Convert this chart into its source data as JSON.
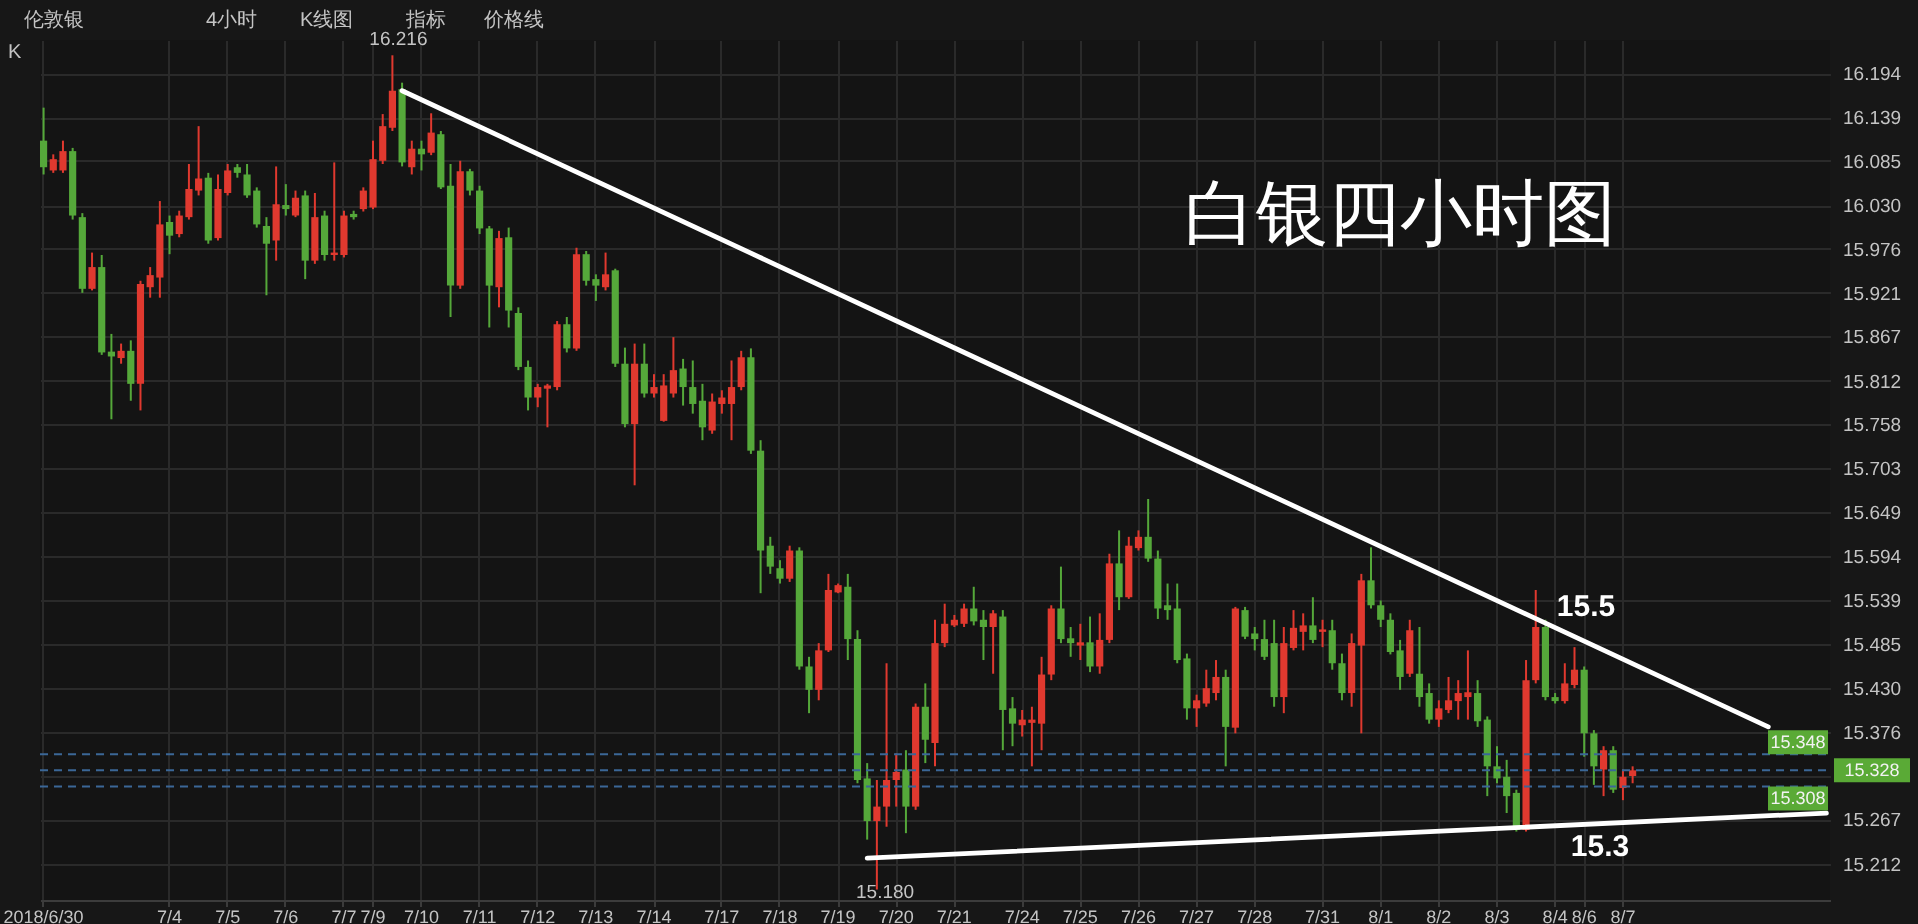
{
  "chart_data": {
    "type": "candlestick",
    "title": "白银四小时图",
    "grid": true,
    "ylim": [
      15.167,
      16.235
    ],
    "yticks": [
      16.194,
      16.139,
      16.085,
      {
        "value": 16.03,
        "label": "16.030"
      },
      15.976,
      15.921,
      15.867,
      15.812,
      15.758,
      15.703,
      15.649,
      15.594,
      15.539,
      15.485,
      {
        "value": 15.43,
        "label": "15.430"
      },
      15.376,
      {
        "value": 15.321,
        "label": null
      },
      15.267,
      15.212
    ],
    "categories": [
      "2018/6/30",
      null,
      null,
      null,
      null,
      null,
      null,
      null,
      null,
      null,
      null,
      null,
      null,
      "7/4",
      null,
      null,
      null,
      null,
      null,
      "7/5",
      null,
      null,
      null,
      null,
      null,
      "7/6",
      null,
      null,
      null,
      null,
      null,
      "7/7",
      null,
      null,
      "7/9",
      null,
      null,
      null,
      null,
      "7/10",
      null,
      null,
      null,
      null,
      null,
      "7/11",
      null,
      null,
      null,
      null,
      null,
      "7/12",
      null,
      null,
      null,
      null,
      null,
      "7/13",
      null,
      null,
      null,
      null,
      null,
      "7/14",
      null,
      null,
      null,
      null,
      null,
      null,
      "7/17",
      null,
      null,
      null,
      null,
      null,
      "7/18",
      null,
      null,
      null,
      null,
      null,
      "7/19",
      null,
      null,
      null,
      null,
      null,
      "7/20",
      null,
      null,
      null,
      null,
      null,
      "7/21",
      null,
      null,
      null,
      null,
      null,
      null,
      "7/24",
      null,
      null,
      null,
      null,
      null,
      "7/25",
      null,
      null,
      null,
      null,
      null,
      "7/26",
      null,
      null,
      null,
      null,
      null,
      "7/27",
      null,
      null,
      null,
      null,
      null,
      "7/28",
      null,
      null,
      null,
      null,
      null,
      null,
      "7/31",
      null,
      null,
      null,
      null,
      null,
      "8/1",
      null,
      null,
      null,
      null,
      null,
      "8/2",
      null,
      null,
      null,
      null,
      null,
      "8/3",
      null,
      null,
      null,
      null,
      null,
      "8/4",
      null,
      null,
      "8/6",
      null,
      null,
      null,
      "8/7",
      null,
      null,
      null,
      null,
      null,
      null,
      null,
      null,
      null,
      null,
      null,
      null,
      null,
      null,
      null,
      null,
      null,
      null,
      null,
      null,
      null
    ],
    "ohlc": [
      [
        16.11,
        16.151,
        16.068,
        16.077
      ],
      [
        16.073,
        16.093,
        16.07,
        16.087
      ],
      [
        16.073,
        16.11,
        16.07,
        16.097
      ],
      [
        16.097,
        16.101,
        16.012,
        16.017
      ],
      [
        16.015,
        16.02,
        15.921,
        15.926
      ],
      [
        15.926,
        15.971,
        15.924,
        15.953
      ],
      [
        15.953,
        15.968,
        15.844,
        15.847
      ],
      [
        15.848,
        15.87,
        15.764,
        15.842
      ],
      [
        15.84,
        15.858,
        15.833,
        15.849
      ],
      [
        15.849,
        15.862,
        15.787,
        15.808
      ],
      [
        15.808,
        15.936,
        15.775,
        15.932
      ],
      [
        15.928,
        15.953,
        15.915,
        15.943
      ],
      [
        15.94,
        16.035,
        15.915,
        16.006
      ],
      [
        16.009,
        16.017,
        15.969,
        15.992
      ],
      [
        15.994,
        16.023,
        15.99,
        16.017
      ],
      [
        16.015,
        16.081,
        16.012,
        16.05
      ],
      [
        16.048,
        16.128,
        16.042,
        16.063
      ],
      [
        16.064,
        16.07,
        15.982,
        15.986
      ],
      [
        15.989,
        16.068,
        15.986,
        16.05
      ],
      [
        16.045,
        16.081,
        16.042,
        16.073
      ],
      [
        16.077,
        16.081,
        16.064,
        16.07
      ],
      [
        16.068,
        16.081,
        16.039,
        16.042
      ],
      [
        16.048,
        16.052,
        16.002,
        16.006
      ],
      [
        16.004,
        16.015,
        15.918,
        15.982
      ],
      [
        15.986,
        16.078,
        15.961,
        16.031
      ],
      [
        16.03,
        16.056,
        16.017,
        16.025
      ],
      [
        16.017,
        16.048,
        16.015,
        16.039
      ],
      [
        16.042,
        16.048,
        15.938,
        15.961
      ],
      [
        15.961,
        16.045,
        15.957,
        16.015
      ],
      [
        16.017,
        16.023,
        15.961,
        15.968
      ],
      [
        15.968,
        16.083,
        15.961,
        15.971
      ],
      [
        15.968,
        16.023,
        15.965,
        16.017
      ],
      [
        16.019,
        16.023,
        16.012,
        16.015
      ],
      [
        16.025,
        16.052,
        16.022,
        16.048
      ],
      [
        16.027,
        16.11,
        16.025,
        16.087
      ],
      [
        16.085,
        16.143,
        16.081,
        16.128
      ],
      [
        16.126,
        16.216,
        16.122,
        16.172
      ],
      [
        16.174,
        16.182,
        16.078,
        16.083
      ],
      [
        16.077,
        16.11,
        16.068,
        16.1
      ],
      [
        16.1,
        16.11,
        16.073,
        16.093
      ],
      [
        16.095,
        16.144,
        16.092,
        16.12
      ],
      [
        16.118,
        16.122,
        16.05,
        16.052
      ],
      [
        16.054,
        16.081,
        15.891,
        15.93
      ],
      [
        15.93,
        16.085,
        15.926,
        16.072
      ],
      [
        16.072,
        16.075,
        16.042,
        16.048
      ],
      [
        16.048,
        16.054,
        15.994,
        16.001
      ],
      [
        16.001,
        16.004,
        15.878,
        15.93
      ],
      [
        15.928,
        15.998,
        15.903,
        15.989
      ],
      [
        15.99,
        16.002,
        15.878,
        15.899
      ],
      [
        15.896,
        15.903,
        15.825,
        15.829
      ],
      [
        15.829,
        15.837,
        15.775,
        15.791
      ],
      [
        15.791,
        15.808,
        15.779,
        15.804
      ],
      [
        15.802,
        15.808,
        15.754,
        15.806
      ],
      [
        15.804,
        15.886,
        15.8,
        15.882
      ],
      [
        15.882,
        15.891,
        15.847,
        15.852
      ],
      [
        15.852,
        15.977,
        15.849,
        15.969
      ],
      [
        15.969,
        15.973,
        15.93,
        15.936
      ],
      [
        15.938,
        15.944,
        15.911,
        15.93
      ],
      [
        15.928,
        15.971,
        15.924,
        15.944
      ],
      [
        15.949,
        15.951,
        15.829,
        15.833
      ],
      [
        15.833,
        15.853,
        15.754,
        15.758
      ],
      [
        15.758,
        15.858,
        15.682,
        15.833
      ],
      [
        15.833,
        15.858,
        15.791,
        15.796
      ],
      [
        15.796,
        15.82,
        15.791,
        15.804
      ],
      [
        15.762,
        15.82,
        15.761,
        15.806
      ],
      [
        15.796,
        15.866,
        15.791,
        15.825
      ],
      [
        15.827,
        15.839,
        15.781,
        15.804
      ],
      [
        15.804,
        15.837,
        15.771,
        15.783
      ],
      [
        15.787,
        15.808,
        15.738,
        15.754
      ],
      [
        15.75,
        15.796,
        15.746,
        15.786
      ],
      [
        15.783,
        15.8,
        15.771,
        15.791
      ],
      [
        15.783,
        15.837,
        15.738,
        15.804
      ],
      [
        15.804,
        15.849,
        15.8,
        15.841
      ],
      [
        15.841,
        15.852,
        15.721,
        15.725
      ],
      [
        15.725,
        15.738,
        15.548,
        15.601
      ],
      [
        15.607,
        15.618,
        15.572,
        15.581
      ],
      [
        15.579,
        15.589,
        15.56,
        15.566
      ],
      [
        15.566,
        15.607,
        15.562,
        15.601
      ],
      [
        15.601,
        15.605,
        15.453,
        15.457
      ],
      [
        15.457,
        15.469,
        15.399,
        15.428
      ],
      [
        15.428,
        15.486,
        15.415,
        15.477
      ],
      [
        15.477,
        15.572,
        15.475,
        15.552
      ],
      [
        15.549,
        15.56,
        15.548,
        15.558
      ],
      [
        15.556,
        15.572,
        15.465,
        15.491
      ],
      [
        15.491,
        15.502,
        15.312,
        15.316
      ],
      [
        15.318,
        15.337,
        15.242,
        15.265
      ],
      [
        15.265,
        15.316,
        15.18,
        15.283
      ],
      [
        15.283,
        15.461,
        15.258,
        15.316
      ],
      [
        15.316,
        15.349,
        15.283,
        15.326
      ],
      [
        15.329,
        15.353,
        15.25,
        15.283
      ],
      [
        15.283,
        15.411,
        15.279,
        15.407
      ],
      [
        15.407,
        15.436,
        15.337,
        15.366
      ],
      [
        15.362,
        15.515,
        15.333,
        15.486
      ],
      [
        15.486,
        15.535,
        15.481,
        15.51
      ],
      [
        15.508,
        15.521,
        15.506,
        15.515
      ],
      [
        15.51,
        15.535,
        15.506,
        15.529
      ],
      [
        15.529,
        15.556,
        15.508,
        15.513
      ],
      [
        15.515,
        15.527,
        15.465,
        15.506
      ],
      [
        15.506,
        15.527,
        15.448,
        15.523
      ],
      [
        15.519,
        15.527,
        15.353,
        15.403
      ],
      [
        15.405,
        15.419,
        15.358,
        15.386
      ],
      [
        15.384,
        15.403,
        15.37,
        15.391
      ],
      [
        15.387,
        15.407,
        15.333,
        15.391
      ],
      [
        15.386,
        15.469,
        15.353,
        15.447
      ],
      [
        15.447,
        15.533,
        15.44,
        15.529
      ],
      [
        15.529,
        15.581,
        15.486,
        15.491
      ],
      [
        15.492,
        15.506,
        15.469,
        15.486
      ],
      [
        15.483,
        15.51,
        15.465,
        15.487
      ],
      [
        15.487,
        15.519,
        15.45,
        15.457
      ],
      [
        15.457,
        15.523,
        15.448,
        15.49
      ],
      [
        15.49,
        15.597,
        15.486,
        15.585
      ],
      [
        15.585,
        15.626,
        15.527,
        15.543
      ],
      [
        15.543,
        15.618,
        15.541,
        15.607
      ],
      [
        15.604,
        15.626,
        15.601,
        15.618
      ],
      [
        15.618,
        15.665,
        15.587,
        15.591
      ],
      [
        15.591,
        15.601,
        15.516,
        15.529
      ],
      [
        15.533,
        15.56,
        15.515,
        15.527
      ],
      [
        15.529,
        15.56,
        15.461,
        15.465
      ],
      [
        15.467,
        15.473,
        15.391,
        15.405
      ],
      [
        15.405,
        15.422,
        15.382,
        15.415
      ],
      [
        15.411,
        15.453,
        15.407,
        15.43
      ],
      [
        15.424,
        15.465,
        15.415,
        15.444
      ],
      [
        15.444,
        15.453,
        15.333,
        15.382
      ],
      [
        15.381,
        15.531,
        15.374,
        15.529
      ],
      [
        15.527,
        15.531,
        15.491,
        15.494
      ],
      [
        15.498,
        15.506,
        15.477,
        15.491
      ],
      [
        15.491,
        15.515,
        15.465,
        15.469
      ],
      [
        15.486,
        15.515,
        15.407,
        15.419
      ],
      [
        15.419,
        15.506,
        15.399,
        15.486
      ],
      [
        15.48,
        15.527,
        15.477,
        15.505
      ],
      [
        15.5,
        15.523,
        15.477,
        15.508
      ],
      [
        15.508,
        15.543,
        15.486,
        15.49
      ],
      [
        15.5,
        15.515,
        15.481,
        15.503
      ],
      [
        15.502,
        15.515,
        15.453,
        15.461
      ],
      [
        15.461,
        15.473,
        15.415,
        15.424
      ],
      [
        15.424,
        15.498,
        15.407,
        15.486
      ],
      [
        15.483,
        15.572,
        15.374,
        15.564
      ],
      [
        15.564,
        15.605,
        15.529,
        15.533
      ],
      [
        15.533,
        15.539,
        15.506,
        15.515
      ],
      [
        15.515,
        15.523,
        15.472,
        15.475
      ],
      [
        15.477,
        15.49,
        15.428,
        15.444
      ],
      [
        15.448,
        15.515,
        15.444,
        15.502
      ],
      [
        15.448,
        15.506,
        15.407,
        15.419
      ],
      [
        15.424,
        15.436,
        15.386,
        15.391
      ],
      [
        15.391,
        15.415,
        15.382,
        15.405
      ],
      [
        15.403,
        15.444,
        15.399,
        15.415
      ],
      [
        15.414,
        15.44,
        15.391,
        15.424
      ],
      [
        15.419,
        15.477,
        15.391,
        15.425
      ],
      [
        15.424,
        15.44,
        15.382,
        15.389
      ],
      [
        15.391,
        15.395,
        15.296,
        15.333
      ],
      [
        15.333,
        15.358,
        15.312,
        15.318
      ],
      [
        15.32,
        15.341,
        15.275,
        15.296
      ],
      [
        15.3,
        15.304,
        15.252,
        15.254
      ],
      [
        15.254,
        15.465,
        15.252,
        15.44
      ],
      [
        15.44,
        15.552,
        15.436,
        15.506
      ],
      [
        15.506,
        15.515,
        15.415,
        15.419
      ],
      [
        15.419,
        15.424,
        15.411,
        15.414
      ],
      [
        15.414,
        15.461,
        15.411,
        15.436
      ],
      [
        15.434,
        15.481,
        15.43,
        15.453
      ],
      [
        15.453,
        15.457,
        15.345,
        15.374
      ],
      [
        15.374,
        15.378,
        15.31,
        15.333
      ],
      [
        15.329,
        15.358,
        15.296,
        15.353
      ],
      [
        15.353,
        15.358,
        15.3,
        15.304
      ],
      [
        15.306,
        15.329,
        15.291,
        15.32
      ],
      [
        15.321,
        15.333,
        15.312,
        15.328
      ],
      null,
      null,
      null,
      null,
      null,
      null,
      null,
      null,
      null,
      null,
      null,
      null,
      null,
      null,
      null,
      null,
      null,
      null,
      null,
      null
    ],
    "colors": [
      "#55a83a",
      "#e0392f",
      "#e0392f",
      "#55a83a",
      "#55a83a",
      "#e0392f",
      "#55a83a",
      "#55a83a",
      "#e0392f",
      "#55a83a",
      "#e0392f",
      "#e0392f",
      "#e0392f",
      "#55a83a",
      "#e0392f",
      "#e0392f",
      "#e0392f",
      "#55a83a",
      "#e0392f",
      "#e0392f",
      "#55a83a",
      "#55a83a",
      "#55a83a",
      "#55a83a",
      "#e0392f",
      "#55a83a",
      "#e0392f",
      "#55a83a",
      "#e0392f",
      "#55a83a",
      "#e0392f",
      "#e0392f",
      "#55a83a",
      "#e0392f",
      "#e0392f",
      "#e0392f",
      "#e0392f",
      "#55a83a",
      "#e0392f",
      "#55a83a",
      "#e0392f",
      "#55a83a",
      "#55a83a",
      "#e0392f",
      "#55a83a",
      "#55a83a",
      "#55a83a",
      "#e0392f",
      "#55a83a",
      "#55a83a",
      "#55a83a",
      "#e0392f",
      "#e0392f",
      "#e0392f",
      "#55a83a",
      "#e0392f",
      "#55a83a",
      "#55a83a",
      "#e0392f",
      "#55a83a",
      "#55a83a",
      "#e0392f",
      "#55a83a",
      "#e0392f",
      "#e0392f",
      "#e0392f",
      "#55a83a",
      "#55a83a",
      "#55a83a",
      "#e0392f",
      "#e0392f",
      "#e0392f",
      "#e0392f",
      "#55a83a",
      "#55a83a",
      "#55a83a",
      "#55a83a",
      "#e0392f",
      "#55a83a",
      "#55a83a",
      "#e0392f",
      "#e0392f",
      "#e0392f",
      "#55a83a",
      "#55a83a",
      "#55a83a",
      "#e0392f",
      "#e0392f",
      "#e0392f",
      "#55a83a",
      "#e0392f",
      "#55a83a",
      "#e0392f",
      "#e0392f",
      "#e0392f",
      "#e0392f",
      "#55a83a",
      "#55a83a",
      "#e0392f",
      "#55a83a",
      "#55a83a",
      "#e0392f",
      "#e0392f",
      "#e0392f",
      "#e0392f",
      "#55a83a",
      "#55a83a",
      "#e0392f",
      "#55a83a",
      "#e0392f",
      "#e0392f",
      "#55a83a",
      "#e0392f",
      "#e0392f",
      "#55a83a",
      "#55a83a",
      "#55a83a",
      "#55a83a",
      "#55a83a",
      "#e0392f",
      "#e0392f",
      "#e0392f",
      "#55a83a",
      "#e0392f",
      "#55a83a",
      "#55a83a",
      "#55a83a",
      "#55a83a",
      "#e0392f",
      "#e0392f",
      "#e0392f",
      "#55a83a",
      "#e0392f",
      "#55a83a",
      "#55a83a",
      "#e0392f",
      "#e0392f",
      "#55a83a",
      "#55a83a",
      "#55a83a",
      "#55a83a",
      "#e0392f",
      "#55a83a",
      "#55a83a",
      "#e0392f",
      "#e0392f",
      "#e0392f",
      "#e0392f",
      "#55a83a",
      "#55a83a",
      "#55a83a",
      "#55a83a",
      "#55a83a",
      "#e0392f",
      "#e0392f",
      "#55a83a",
      "#55a83a",
      "#e0392f",
      "#e0392f",
      "#55a83a",
      "#55a83a",
      "#e0392f",
      "#55a83a",
      "#e0392f",
      "#e0392f",
      null,
      null,
      null,
      null,
      null,
      null,
      null,
      null,
      null,
      null,
      null,
      null,
      null,
      null,
      null,
      null,
      null,
      null,
      null,
      null
    ],
    "series": [
      {
        "type": "line",
        "color": "#ffffff",
        "values": [
          null,
          null,
          null,
          null,
          null,
          null,
          null,
          null,
          null,
          null,
          null,
          null,
          null,
          null,
          null,
          null,
          null,
          null,
          null,
          null,
          null,
          null,
          null,
          null,
          null,
          null,
          null,
          null,
          null,
          null,
          null,
          null,
          null,
          null,
          null,
          null,
          null,
          16.172,
          null,
          null,
          null,
          null,
          null,
          null,
          null,
          null,
          null,
          null,
          null,
          null,
          null,
          null,
          null,
          null,
          null,
          null,
          null,
          null,
          null,
          null,
          null,
          null,
          null,
          null,
          null,
          null,
          null,
          null,
          null,
          null,
          null,
          null,
          null,
          null,
          null,
          null,
          null,
          null,
          null,
          null,
          null,
          null,
          null,
          null,
          null,
          null,
          null,
          null,
          null,
          null,
          null,
          null,
          null,
          null,
          null,
          null,
          null,
          null,
          null,
          null,
          null,
          null,
          null,
          null,
          null,
          null,
          null,
          null,
          null,
          null,
          null,
          null,
          null,
          null,
          null,
          null,
          null,
          null,
          null,
          null,
          null,
          null,
          null,
          null,
          null,
          null,
          null,
          null,
          null,
          null,
          null,
          null,
          null,
          null,
          null,
          null,
          null,
          null,
          null,
          null,
          null,
          null,
          null,
          null,
          null,
          null,
          null,
          null,
          null,
          null,
          null,
          null,
          null,
          null,
          null,
          null,
          null,
          null,
          null,
          null,
          null,
          null,
          null,
          null,
          null,
          null,
          null,
          null,
          null,
          null,
          null,
          null,
          null,
          null,
          null,
          null,
          null,
          null,
          15.382,
          null,
          null,
          null,
          null,
          null,
          null
        ]
      },
      {
        "type": "line",
        "color": "#ffffff",
        "values": [
          null,
          null,
          null,
          null,
          null,
          null,
          null,
          null,
          null,
          null,
          null,
          null,
          null,
          null,
          null,
          null,
          null,
          null,
          null,
          null,
          null,
          null,
          null,
          null,
          null,
          null,
          null,
          null,
          null,
          null,
          null,
          null,
          null,
          null,
          null,
          null,
          null,
          null,
          null,
          null,
          null,
          null,
          null,
          null,
          null,
          null,
          null,
          null,
          null,
          null,
          null,
          null,
          null,
          null,
          null,
          null,
          null,
          null,
          null,
          null,
          null,
          null,
          null,
          null,
          null,
          null,
          null,
          null,
          null,
          null,
          null,
          null,
          null,
          null,
          null,
          null,
          null,
          null,
          null,
          null,
          null,
          null,
          null,
          null,
          null,
          15.219,
          null,
          null,
          null,
          null,
          null,
          null,
          null,
          null,
          null,
          null,
          null,
          null,
          null,
          null,
          null,
          null,
          null,
          null,
          null,
          null,
          null,
          null,
          null,
          null,
          null,
          null,
          null,
          null,
          null,
          null,
          null,
          null,
          null,
          null,
          null,
          null,
          null,
          null,
          null,
          null,
          null,
          null,
          null,
          null,
          null,
          null,
          null,
          null,
          null,
          null,
          null,
          null,
          null,
          null,
          null,
          null,
          null,
          null,
          null,
          null,
          null,
          null,
          null,
          null,
          null,
          null,
          null,
          null,
          null,
          null,
          null,
          null,
          null,
          null,
          null,
          null,
          null,
          null,
          null,
          null,
          null,
          null,
          null,
          null,
          null,
          null,
          null,
          null,
          null,
          null,
          null,
          null,
          null,
          null,
          null,
          null,
          null,
          null,
          15.275
        ]
      }
    ],
    "ref_lines": [
      {
        "axis": "y",
        "value": 15.348,
        "label": "15.348",
        "color": "#3b6797",
        "line_style": "dashed"
      },
      {
        "axis": "y",
        "value": 15.328,
        "label": "15.328",
        "color": "#3b6797",
        "line_style": "dashed"
      },
      {
        "axis": "y",
        "value": 15.308,
        "label": "15.308",
        "color": "#3b6797",
        "line_style": "dashed"
      }
    ],
    "annotations": [
      "伦敦银",
      "4小时",
      "K线图",
      "指标",
      "价格线",
      "K",
      "15.180",
      "15.5",
      "15.3",
      {
        "text": "16.216",
        "y": 16.216
      }
    ]
  }
}
